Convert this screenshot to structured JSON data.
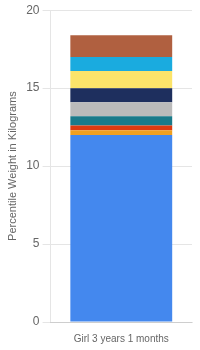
{
  "chart_data": {
    "type": "bar",
    "stacked": true,
    "grid": true,
    "ylabel": "Percentile Weight in Kilograms",
    "categories": [
      "Girl 3 years 1 months"
    ],
    "series": [
      {
        "color": "#4488ee",
        "values": [
          12.0
        ]
      },
      {
        "color": "#f0a020",
        "values": [
          0.3
        ]
      },
      {
        "color": "#dd3a10",
        "values": [
          0.3
        ]
      },
      {
        "color": "#1a7a8a",
        "values": [
          0.6
        ]
      },
      {
        "color": "#bbbbbb",
        "values": [
          0.9
        ]
      },
      {
        "color": "#1e2f5e",
        "values": [
          0.9
        ]
      },
      {
        "color": "#fce46a",
        "values": [
          1.1
        ]
      },
      {
        "color": "#1aabdf",
        "values": [
          0.9
        ]
      },
      {
        "color": "#b06040",
        "values": [
          1.4
        ]
      }
    ],
    "ylim": [
      0,
      20
    ],
    "yticks": [
      0,
      5,
      10,
      15,
      20
    ]
  }
}
